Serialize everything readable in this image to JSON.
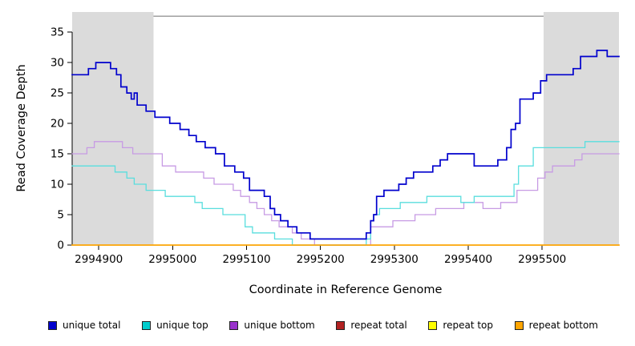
{
  "chart_data": {
    "type": "line",
    "subtype": "step",
    "title": "",
    "xlabel": "Coordinate in Reference Genome",
    "ylabel": "Read Coverage Depth",
    "x_domain": [
      2994864,
      2995604
    ],
    "y_domain": [
      0,
      38.3
    ],
    "x_ticks": [
      2994900,
      2995000,
      2995100,
      2995200,
      2995300,
      2995400,
      2995500
    ],
    "y_ticks": [
      0,
      5,
      10,
      15,
      20,
      25,
      30,
      35
    ],
    "grid": false,
    "axis_color": "#000000",
    "shaded_color": "#DBDBDB",
    "shaded_regions": [
      {
        "x1": 2994864,
        "x2": 2994974
      },
      {
        "x1": 2995502,
        "x2": 2995604
      }
    ],
    "top_segment": {
      "x1": 2994974,
      "x2": 2995502,
      "y": 37.6,
      "color": "#A0A0A0"
    },
    "series": [
      {
        "name": "repeat total",
        "color": "#C00000",
        "width": 1.2,
        "points": [
          [
            2994864,
            0
          ]
        ]
      },
      {
        "name": "repeat top",
        "color": "#FFFF00",
        "width": 1.2,
        "points": [
          [
            2994864,
            0
          ]
        ]
      },
      {
        "name": "unique bottom",
        "color": "#C79BE4",
        "width": 1.3,
        "points": [
          [
            2994864,
            15
          ],
          [
            2994884,
            16
          ],
          [
            2994894,
            17
          ],
          [
            2994932,
            16
          ],
          [
            2994946,
            15
          ],
          [
            2994986,
            13
          ],
          [
            2995004,
            12
          ],
          [
            2995042,
            11
          ],
          [
            2995056,
            10
          ],
          [
            2995082,
            9
          ],
          [
            2995092,
            8
          ],
          [
            2995104,
            7
          ],
          [
            2995114,
            6
          ],
          [
            2995124,
            5
          ],
          [
            2995134,
            4
          ],
          [
            2995144,
            3
          ],
          [
            2995162,
            2
          ],
          [
            2995174,
            1
          ],
          [
            2995192,
            0
          ],
          [
            2995268,
            3
          ],
          [
            2995298,
            4
          ],
          [
            2995328,
            5
          ],
          [
            2995356,
            6
          ],
          [
            2995394,
            7
          ],
          [
            2995420,
            6
          ],
          [
            2995444,
            7
          ],
          [
            2995466,
            9
          ],
          [
            2995494,
            11
          ],
          [
            2995504,
            12
          ],
          [
            2995514,
            13
          ],
          [
            2995544,
            14
          ],
          [
            2995554,
            15
          ]
        ]
      },
      {
        "name": "unique top",
        "color": "#59DEDE",
        "width": 1.3,
        "points": [
          [
            2994864,
            13
          ],
          [
            2994922,
            12
          ],
          [
            2994938,
            11
          ],
          [
            2994948,
            10
          ],
          [
            2994964,
            9
          ],
          [
            2994990,
            8
          ],
          [
            2995030,
            7
          ],
          [
            2995040,
            6
          ],
          [
            2995068,
            5
          ],
          [
            2995098,
            3
          ],
          [
            2995108,
            2
          ],
          [
            2995138,
            1
          ],
          [
            2995162,
            0
          ],
          [
            2995262,
            1
          ],
          [
            2995268,
            4
          ],
          [
            2995272,
            5
          ],
          [
            2995280,
            6
          ],
          [
            2995308,
            7
          ],
          [
            2995344,
            8
          ],
          [
            2995390,
            7
          ],
          [
            2995408,
            8
          ],
          [
            2995462,
            10
          ],
          [
            2995468,
            13
          ],
          [
            2995488,
            16
          ],
          [
            2995558,
            17
          ]
        ]
      },
      {
        "name": "repeat bottom",
        "color": "#FFA500",
        "width": 1.6,
        "points": [
          [
            2994864,
            0
          ]
        ]
      },
      {
        "name": "unique total",
        "color": "#0000CD",
        "width": 1.7,
        "points": [
          [
            2994864,
            28
          ],
          [
            2994886,
            29
          ],
          [
            2994896,
            30
          ],
          [
            2994916,
            29
          ],
          [
            2994924,
            28
          ],
          [
            2994930,
            26
          ],
          [
            2994938,
            25
          ],
          [
            2994944,
            24
          ],
          [
            2994948,
            25
          ],
          [
            2994952,
            23
          ],
          [
            2994964,
            22
          ],
          [
            2994976,
            21
          ],
          [
            2994996,
            20
          ],
          [
            2995010,
            19
          ],
          [
            2995022,
            18
          ],
          [
            2995032,
            17
          ],
          [
            2995044,
            16
          ],
          [
            2995058,
            15
          ],
          [
            2995070,
            13
          ],
          [
            2995084,
            12
          ],
          [
            2995096,
            11
          ],
          [
            2995104,
            9
          ],
          [
            2995124,
            8
          ],
          [
            2995132,
            6
          ],
          [
            2995138,
            5
          ],
          [
            2995146,
            4
          ],
          [
            2995156,
            3
          ],
          [
            2995168,
            2
          ],
          [
            2995186,
            1
          ],
          [
            2995262,
            2
          ],
          [
            2995268,
            4
          ],
          [
            2995272,
            5
          ],
          [
            2995276,
            8
          ],
          [
            2995286,
            9
          ],
          [
            2995306,
            10
          ],
          [
            2995316,
            11
          ],
          [
            2995326,
            12
          ],
          [
            2995352,
            13
          ],
          [
            2995362,
            14
          ],
          [
            2995372,
            15
          ],
          [
            2995408,
            13
          ],
          [
            2995440,
            14
          ],
          [
            2995452,
            16
          ],
          [
            2995458,
            19
          ],
          [
            2995464,
            20
          ],
          [
            2995470,
            24
          ],
          [
            2995488,
            25
          ],
          [
            2995498,
            27
          ],
          [
            2995506,
            28
          ],
          [
            2995542,
            29
          ],
          [
            2995552,
            31
          ],
          [
            2995574,
            32
          ],
          [
            2995588,
            31
          ]
        ]
      }
    ],
    "legend": [
      {
        "label": "unique total",
        "color": "#0000CD"
      },
      {
        "label": "unique top",
        "color": "#00CDCD"
      },
      {
        "label": "unique bottom",
        "color": "#9932CC"
      },
      {
        "label": "repeat total",
        "color": "#B22222"
      },
      {
        "label": "repeat top",
        "color": "#FFFF00"
      },
      {
        "label": "repeat bottom",
        "color": "#FFA500"
      }
    ]
  }
}
